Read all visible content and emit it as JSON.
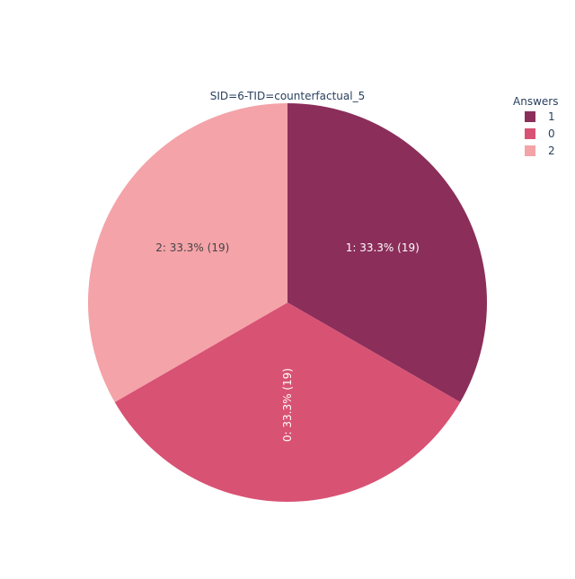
{
  "chart_data": {
    "type": "pie",
    "title": "SID=6-TID=counterfactual_5",
    "legend_title": "Answers",
    "legend_position": "top-right",
    "slices": [
      {
        "label": "1",
        "value": 19,
        "percent_text": "33.3%",
        "color": "#8b2e5a",
        "text_color": "#ffffff"
      },
      {
        "label": "0",
        "value": 19,
        "percent_text": "33.3%",
        "color": "#d85274",
        "text_color": "#ffffff"
      },
      {
        "label": "2",
        "value": 19,
        "percent_text": "33.3%",
        "color": "#f4a3a8",
        "text_color": "#444444"
      }
    ]
  }
}
